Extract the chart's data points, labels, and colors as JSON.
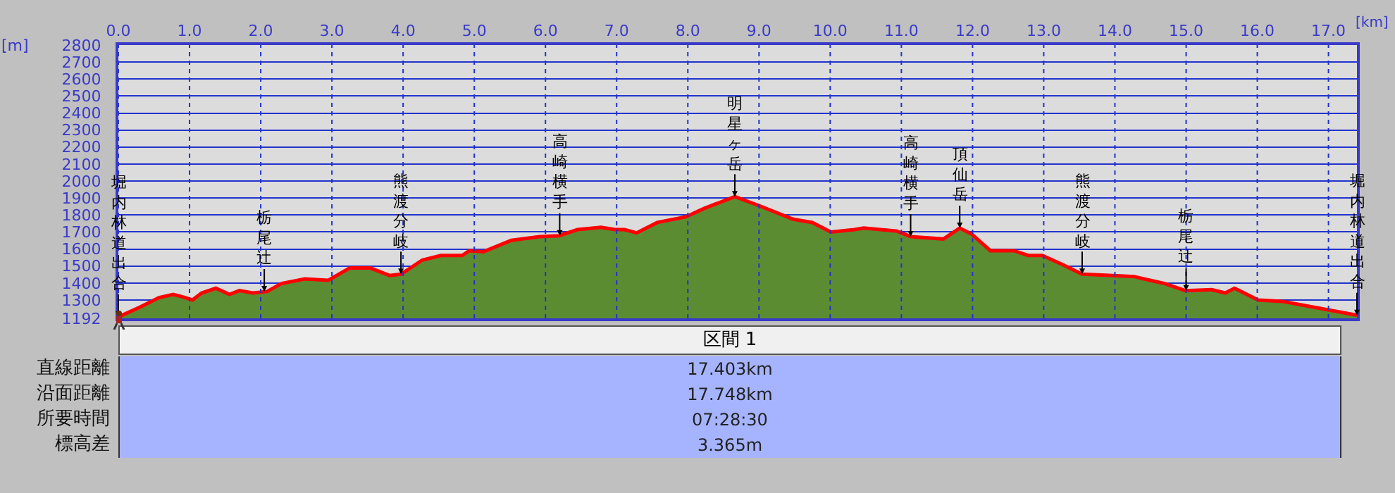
{
  "chart_data": {
    "type": "area",
    "xlabel": "[km]",
    "ylabel": "[m]",
    "series": [
      {
        "color": "#5b8c32",
        "x": [
          0,
          0.31,
          0.57,
          0.77,
          0.94,
          1.04,
          1.17,
          1.37,
          1.56,
          1.7,
          1.89,
          2.09,
          2.29,
          2.62,
          2.95,
          3.25,
          3.54,
          3.81,
          3.97,
          4.27,
          4.53,
          4.83,
          4.93,
          5.13,
          5.52,
          5.92,
          6.19,
          6.45,
          6.78,
          6.98,
          7.11,
          7.28,
          7.57,
          7.97,
          8.23,
          8.66,
          9.02,
          9.48,
          9.75,
          10.01,
          10.34,
          10.47,
          10.93,
          11.13,
          11.59,
          11.82,
          11.99,
          12.25,
          12.58,
          12.78,
          12.98,
          13.24,
          13.54,
          13.97,
          14.27,
          14.46,
          14.7,
          14.99,
          15.36,
          15.55,
          15.68,
          16.01,
          16.35,
          16.61,
          17.4
        ],
        "values": [
          1200,
          1259,
          1314,
          1333,
          1314,
          1300,
          1341,
          1369,
          1333,
          1355,
          1341,
          1350,
          1397,
          1424,
          1416,
          1488,
          1488,
          1444,
          1452,
          1535,
          1562,
          1562,
          1590,
          1584,
          1651,
          1673,
          1678,
          1714,
          1728,
          1714,
          1714,
          1695,
          1756,
          1789,
          1839,
          1908,
          1852,
          1775,
          1756,
          1700,
          1714,
          1723,
          1706,
          1673,
          1659,
          1723,
          1687,
          1590,
          1590,
          1562,
          1562,
          1513,
          1452,
          1444,
          1438,
          1419,
          1397,
          1355,
          1361,
          1341,
          1369,
          1300,
          1292,
          1272,
          1210
        ]
      },
      {
        "type": "line",
        "color": "#ff0000",
        "x": [
          0,
          0.31,
          0.57,
          0.77,
          0.94,
          1.04,
          1.17,
          1.37,
          1.56,
          1.7,
          1.89,
          2.09,
          2.29,
          2.62,
          2.95,
          3.25,
          3.54,
          3.81,
          3.97,
          4.27,
          4.53,
          4.83,
          4.93,
          5.13,
          5.52,
          5.92,
          6.19,
          6.45,
          6.78,
          6.98,
          7.11,
          7.28,
          7.57,
          7.97,
          8.23,
          8.66,
          9.02,
          9.48,
          9.75,
          10.01,
          10.34,
          10.47,
          10.93,
          11.13,
          11.59,
          11.82,
          11.99,
          12.25,
          12.58,
          12.78,
          12.98,
          13.24,
          13.54,
          13.97,
          14.27,
          14.46,
          14.7,
          14.99,
          15.36,
          15.55,
          15.68,
          16.01,
          16.35,
          16.61,
          17.4
        ],
        "values": [
          1200,
          1259,
          1314,
          1333,
          1314,
          1300,
          1341,
          1369,
          1333,
          1355,
          1341,
          1350,
          1397,
          1424,
          1416,
          1488,
          1488,
          1444,
          1452,
          1535,
          1562,
          1562,
          1590,
          1584,
          1651,
          1673,
          1678,
          1714,
          1728,
          1714,
          1714,
          1695,
          1756,
          1789,
          1839,
          1908,
          1852,
          1775,
          1756,
          1700,
          1714,
          1723,
          1706,
          1673,
          1659,
          1723,
          1687,
          1590,
          1590,
          1562,
          1562,
          1513,
          1452,
          1444,
          1438,
          1419,
          1397,
          1355,
          1361,
          1341,
          1369,
          1300,
          1292,
          1272,
          1210
        ]
      }
    ],
    "xlim": [
      0,
      17.4
    ],
    "ylim": [
      1192,
      2800
    ],
    "xticks": [
      {
        "value": 0,
        "label": "0.0"
      },
      {
        "value": 1,
        "label": "1.0"
      },
      {
        "value": 2,
        "label": "2.0"
      },
      {
        "value": 3,
        "label": "3.0"
      },
      {
        "value": 4,
        "label": "4.0"
      },
      {
        "value": 5,
        "label": "5.0"
      },
      {
        "value": 6,
        "label": "6.0"
      },
      {
        "value": 7,
        "label": "7.0"
      },
      {
        "value": 8,
        "label": "8.0"
      },
      {
        "value": 9,
        "label": "9.0"
      },
      {
        "value": 10,
        "label": "10.0"
      },
      {
        "value": 11,
        "label": "11.0"
      },
      {
        "value": 12,
        "label": "12.0"
      },
      {
        "value": 13,
        "label": "13.0"
      },
      {
        "value": 14,
        "label": "14.0"
      },
      {
        "value": 15,
        "label": "15.0"
      },
      {
        "value": 16,
        "label": "16.0"
      },
      {
        "value": 17,
        "label": "17.0"
      }
    ],
    "yticks": [
      1192,
      1300,
      1400,
      1500,
      1600,
      1700,
      1800,
      1900,
      2000,
      2100,
      2200,
      2300,
      2400,
      2500,
      2600,
      2700,
      2800
    ],
    "grid": true,
    "marker": "none",
    "line_style": "solid",
    "annotations": [
      {
        "text": "堀内林道出合",
        "x": 0,
        "y": 1200
      },
      {
        "text": "栃尾辻",
        "x": 2.05,
        "y": 1350
      },
      {
        "text": "熊渡分岐",
        "x": 3.97,
        "y": 1452
      },
      {
        "text": "高崎横手",
        "x": 6.2,
        "y": 1678
      },
      {
        "text": "明星ヶ岳",
        "x": 8.66,
        "y": 1908
      },
      {
        "text": "高崎横手",
        "x": 11.13,
        "y": 1673
      },
      {
        "text": "頂仙岳",
        "x": 11.82,
        "y": 1723
      },
      {
        "text": "熊渡分岐",
        "x": 13.54,
        "y": 1452
      },
      {
        "text": "栃尾辻",
        "x": 15.0,
        "y": 1355
      },
      {
        "text": "堀内林道出合",
        "x": 17.4,
        "y": 1210
      },
      "区間 1",
      "直線距離",
      "17.403km",
      "沿面距離",
      "17.748km",
      "所要時間",
      "07:28:30",
      "標高差",
      "3.365m"
    ]
  }
}
